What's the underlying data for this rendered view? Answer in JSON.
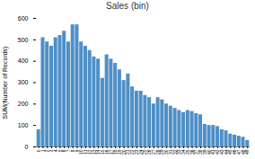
{
  "chart_data": {
    "type": "bar",
    "title": "Sales (bin)",
    "y_label": "SUM(Number of Records)",
    "categories": [
      "0",
      "1",
      "2",
      "3",
      "4",
      "5",
      "6",
      "7",
      "8",
      "9",
      "10",
      "11",
      "12",
      "13",
      "14",
      "15",
      "16",
      "17",
      "18",
      "19",
      "20",
      "21",
      "22",
      "23",
      "24",
      "25",
      "26",
      "27",
      "28",
      "29",
      "30",
      "31",
      "32",
      "33",
      "34",
      "35",
      "36",
      "37",
      "38",
      "39",
      "40",
      "41",
      "42",
      "43",
      "44",
      "45",
      "46",
      "47",
      "48",
      "49"
    ],
    "values": [
      80,
      510,
      490,
      470,
      510,
      520,
      540,
      490,
      570,
      570,
      490,
      470,
      450,
      420,
      410,
      320,
      430,
      410,
      390,
      360,
      310,
      340,
      280,
      260,
      260,
      240,
      230,
      200,
      230,
      220,
      200,
      190,
      180,
      170,
      160,
      170,
      165,
      155,
      150,
      105,
      100,
      100,
      95,
      80,
      75,
      60,
      55,
      50,
      45,
      30
    ],
    "color": "#4E8FC7",
    "ylim": [
      0,
      600
    ],
    "yticks": [
      0,
      100,
      200,
      300,
      400,
      500,
      600
    ],
    "grid": false
  }
}
